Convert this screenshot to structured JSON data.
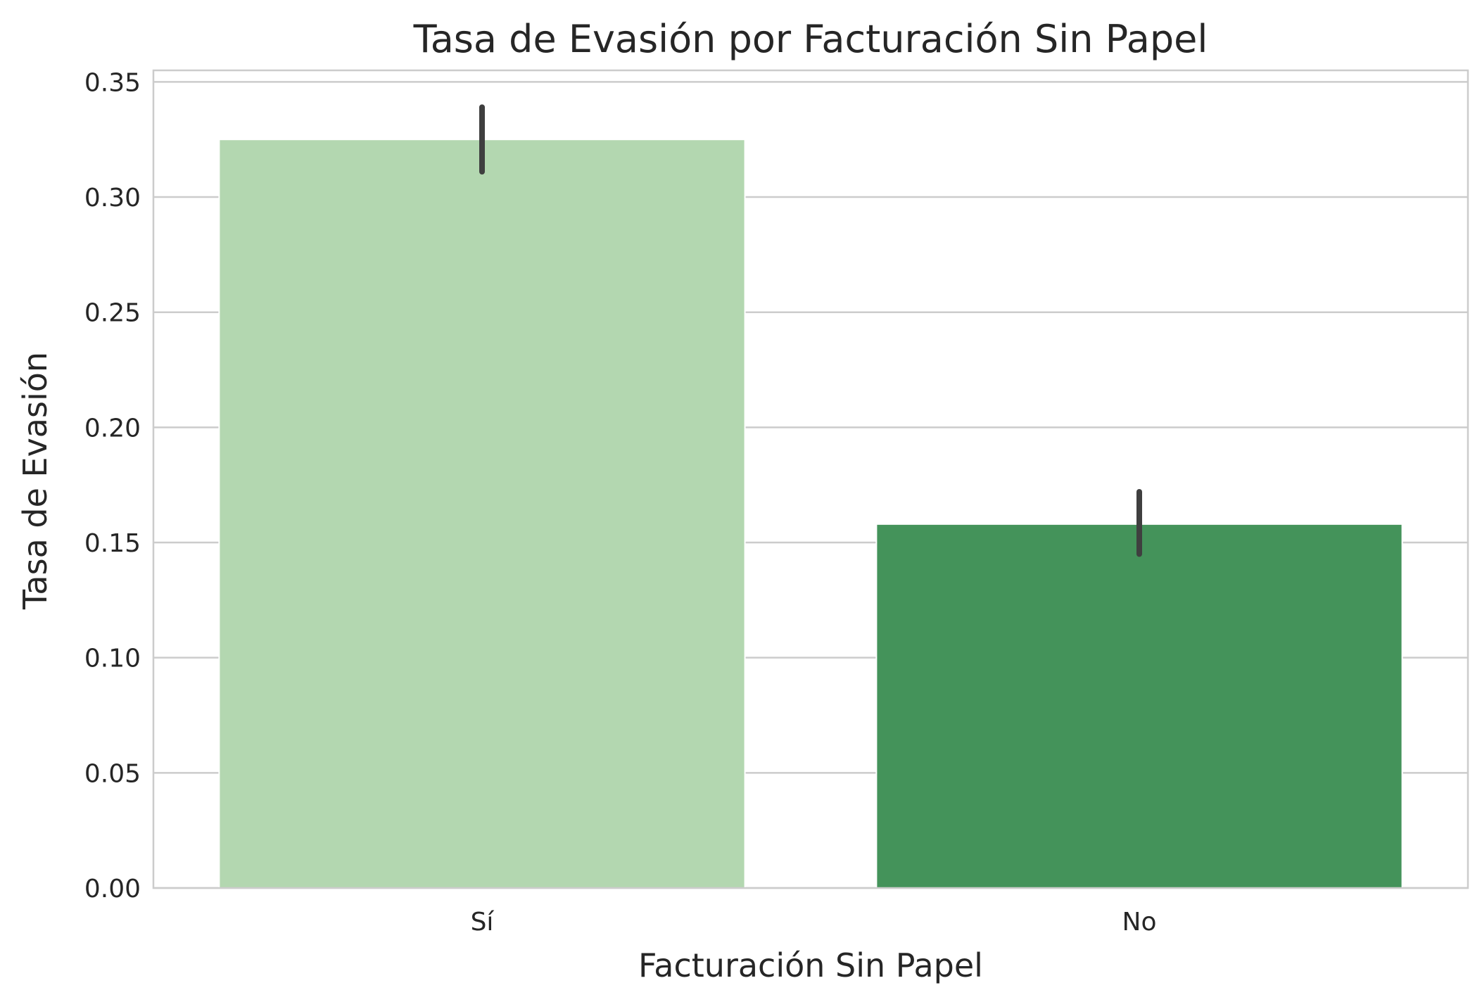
{
  "chart_data": {
    "type": "bar",
    "title": "Tasa de Evasión por Facturación Sin Papel",
    "xlabel": "Facturación Sin Papel",
    "ylabel": "Tasa de Evasión",
    "categories": [
      "Sí",
      "No"
    ],
    "values": [
      0.325,
      0.158
    ],
    "error_bars": [
      {
        "low": 0.311,
        "high": 0.339
      },
      {
        "low": 0.145,
        "high": 0.172
      }
    ],
    "ylim": [
      0,
      0.355
    ],
    "yticks": [
      "0.00",
      "0.05",
      "0.10",
      "0.15",
      "0.20",
      "0.25",
      "0.30",
      "0.35"
    ],
    "ytick_values": [
      0,
      0.05,
      0.1,
      0.15,
      0.2,
      0.25,
      0.3,
      0.35
    ],
    "grid": "horizontal",
    "colors": {
      "bars": [
        "#b3d7b0",
        "#44935a"
      ],
      "error_bar": "#3f3f3f",
      "grid": "#cccccc",
      "frame": "#cccccc"
    }
  }
}
